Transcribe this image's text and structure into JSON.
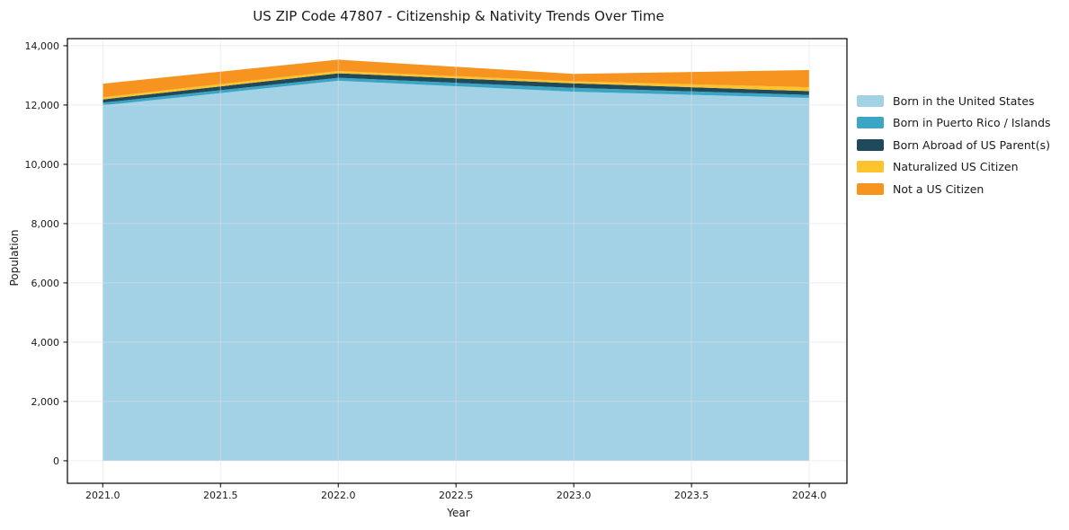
{
  "chart": {
    "title": "US ZIP Code 47807 - Citizenship & Nativity Trends Over Time",
    "xlabel": "Year",
    "ylabel": "Population"
  },
  "chart_data": {
    "type": "area",
    "stacked": true,
    "title": "US ZIP Code 47807 - Citizenship & Nativity Trends Over Time",
    "xlabel": "Year",
    "ylabel": "Population",
    "grid": true,
    "legend_position": "right-outside",
    "x": [
      2021,
      2022,
      2023,
      2024
    ],
    "x_ticks": [
      2021.0,
      2021.5,
      2022.0,
      2022.5,
      2023.0,
      2023.5,
      2024.0
    ],
    "x_tick_labels": [
      "2021.0",
      "2021.5",
      "2022.0",
      "2022.5",
      "2023.0",
      "2023.5",
      "2024.0"
    ],
    "y_ticks": [
      0,
      2000,
      4000,
      6000,
      8000,
      10000,
      12000,
      14000
    ],
    "y_tick_labels": [
      "0",
      "2,000",
      "4,000",
      "6,000",
      "8,000",
      "10,000",
      "12,000",
      "14,000"
    ],
    "xlim": [
      2020.85,
      2024.16
    ],
    "ylim": [
      -760,
      14240
    ],
    "series": [
      {
        "name": "Born in the United States",
        "color": "#A3D1E6",
        "values": [
          11990,
          12820,
          12450,
          12240
        ]
      },
      {
        "name": "Born in Puerto Rico / Islands",
        "color": "#3AA5C4",
        "values": [
          90,
          100,
          130,
          100
        ]
      },
      {
        "name": "Born Abroad of US Parent(s)",
        "color": "#1F4A5C",
        "values": [
          110,
          150,
          150,
          130
        ]
      },
      {
        "name": "Naturalized US Citizen",
        "color": "#FDC22C",
        "values": [
          70,
          80,
          70,
          130
        ]
      },
      {
        "name": "Not a US Citizen",
        "color": "#F6941F",
        "values": [
          460,
          380,
          250,
          580
        ]
      }
    ],
    "totals": [
      12720,
      13530,
      13050,
      13180
    ],
    "colors": {
      "spine": "#000000",
      "grid": "#e0e0e0",
      "text": "#1a1a1a",
      "background": "#ffffff"
    }
  }
}
